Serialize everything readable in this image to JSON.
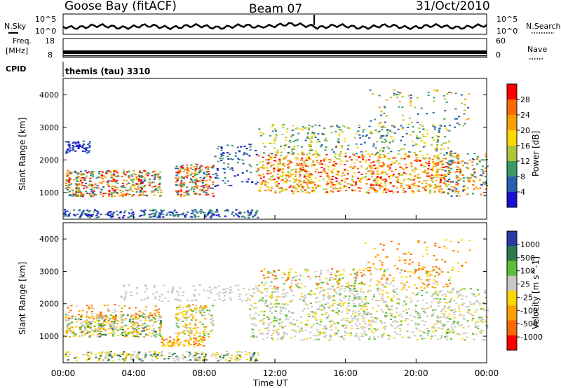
{
  "header": {
    "station": "Goose Bay (fitACF)",
    "beam": "Beam 07",
    "date": "31/Oct/2010"
  },
  "noise_panel": {
    "left_label": "N.Sky",
    "right_label": "N.Search",
    "ytick_top": "10^5",
    "ytick_bottom": "10^0"
  },
  "freq_panel": {
    "left_label_1": "Freq.",
    "left_label_2": "[MHz]",
    "left_ticks": [
      "18",
      "8"
    ],
    "right_label": "Nave",
    "right_ticks": [
      "60",
      "0"
    ]
  },
  "cpid_panel": {
    "label": "CPID",
    "mode": "themis (tau) 3310"
  },
  "power_panel": {
    "ylabel": "Slant Range [km]",
    "yticks": [
      "4000",
      "3000",
      "2000",
      "1000"
    ],
    "colorbar_label": "Power [dB]",
    "colorbar_ticks": [
      "28",
      "24",
      "20",
      "16",
      "12",
      "8",
      "4"
    ],
    "colorbar_colors": [
      "#ff0000",
      "#ff6a00",
      "#ffa000",
      "#ffd700",
      "#a8c83a",
      "#3c9a64",
      "#2a5fb0",
      "#1a10d0"
    ]
  },
  "velocity_panel": {
    "ylabel": "Slant Range [km]",
    "yticks": [
      "4000",
      "3000",
      "2000",
      "1000"
    ],
    "colorbar_label": "Velocity [m s^-1]",
    "colorbar_ticks": [
      "1000",
      "500",
      "100",
      "25",
      "-25",
      "-100",
      "-500",
      "-1000"
    ],
    "colorbar_colors": [
      "#2a3aa8",
      "#2f7a4a",
      "#5bbf3a",
      "#c8c8c0",
      "#ffd700",
      "#ffa000",
      "#ff6a00",
      "#ff0000"
    ]
  },
  "time_axis": {
    "ticks": [
      "00:00",
      "04:00",
      "08:00",
      "12:00",
      "16:00",
      "20:00",
      "00:00"
    ],
    "label": "Time UT"
  },
  "chart_data": {
    "type": "heatmap",
    "x_range_hours": [
      0,
      24
    ],
    "y_range_km": [
      180,
      4500
    ],
    "power_clim_db": [
      0,
      30
    ],
    "velocity_clim_ms": [
      -1000,
      1000
    ],
    "grid": false
  }
}
